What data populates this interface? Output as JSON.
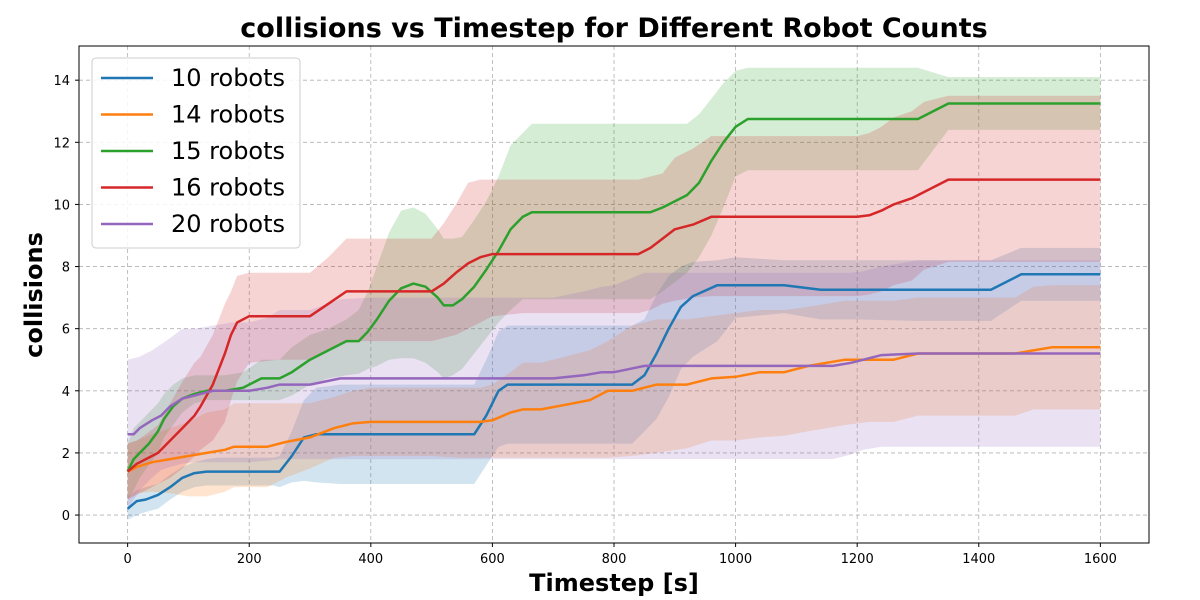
{
  "chart_data": {
    "type": "line",
    "title": "collisions vs Timestep for Different Robot Counts",
    "xlabel": "Timestep [s]",
    "ylabel": "collisions",
    "xlim": [
      -80,
      1680
    ],
    "ylim": [
      -0.9,
      15.1
    ],
    "xticks": [
      0,
      200,
      400,
      600,
      800,
      1000,
      1200,
      1400,
      1600
    ],
    "yticks": [
      0,
      2,
      4,
      6,
      8,
      10,
      12,
      14
    ],
    "grid": true,
    "legend_position": "top-left",
    "series": [
      {
        "name": "10 robots",
        "color": "#1f77b4",
        "x": [
          0,
          15,
          30,
          50,
          70,
          90,
          110,
          130,
          150,
          180,
          210,
          240,
          250,
          270,
          290,
          310,
          350,
          400,
          450,
          500,
          550,
          570,
          590,
          610,
          625,
          650,
          700,
          750,
          800,
          830,
          850,
          870,
          890,
          910,
          930,
          970,
          1000,
          1080,
          1140,
          1200,
          1300,
          1420,
          1470,
          1600
        ],
        "y": [
          0.2,
          0.45,
          0.5,
          0.65,
          0.9,
          1.2,
          1.35,
          1.4,
          1.4,
          1.4,
          1.4,
          1.4,
          1.4,
          1.9,
          2.5,
          2.6,
          2.6,
          2.6,
          2.6,
          2.6,
          2.6,
          2.6,
          3.2,
          4.0,
          4.2,
          4.2,
          4.2,
          4.2,
          4.2,
          4.2,
          4.5,
          5.2,
          6.0,
          6.7,
          7.05,
          7.4,
          7.4,
          7.4,
          7.25,
          7.25,
          7.25,
          7.25,
          7.75,
          7.75
        ],
        "lower": [
          -0.15,
          0.0,
          0.1,
          0.2,
          0.5,
          0.75,
          0.9,
          0.95,
          0.95,
          0.95,
          0.95,
          0.95,
          0.9,
          1.05,
          1.1,
          1.05,
          1.0,
          1.0,
          1.0,
          1.0,
          1.0,
          1.0,
          1.6,
          2.2,
          2.3,
          2.3,
          2.3,
          2.3,
          2.3,
          2.3,
          2.7,
          3.1,
          3.8,
          4.7,
          5.1,
          5.6,
          6.35,
          6.5,
          6.3,
          6.3,
          6.25,
          6.25,
          6.9,
          6.9
        ],
        "upper": [
          0.6,
          0.8,
          0.9,
          1.0,
          1.3,
          1.55,
          1.7,
          1.8,
          1.85,
          1.85,
          1.85,
          1.85,
          1.9,
          2.7,
          3.7,
          4.1,
          4.2,
          4.2,
          4.2,
          4.2,
          4.2,
          4.2,
          5.0,
          5.9,
          6.1,
          6.1,
          6.1,
          6.1,
          6.1,
          6.1,
          6.3,
          7.1,
          7.7,
          8.0,
          8.15,
          8.2,
          8.3,
          8.2,
          8.2,
          8.2,
          8.2,
          8.2,
          8.6,
          8.6
        ]
      },
      {
        "name": "14 robots",
        "color": "#ff7f0e",
        "x": [
          0,
          15,
          40,
          70,
          100,
          130,
          160,
          175,
          200,
          230,
          260,
          300,
          340,
          370,
          400,
          450,
          500,
          550,
          580,
          600,
          630,
          650,
          680,
          720,
          760,
          790,
          830,
          870,
          920,
          960,
          1000,
          1040,
          1080,
          1120,
          1180,
          1220,
          1260,
          1300,
          1340,
          1380,
          1420,
          1460,
          1490,
          1520,
          1600
        ],
        "y": [
          1.4,
          1.55,
          1.7,
          1.8,
          1.9,
          2.0,
          2.1,
          2.2,
          2.2,
          2.2,
          2.35,
          2.5,
          2.8,
          2.95,
          3.0,
          3.0,
          3.0,
          3.0,
          3.0,
          3.05,
          3.3,
          3.4,
          3.4,
          3.55,
          3.7,
          4.0,
          4.0,
          4.2,
          4.2,
          4.4,
          4.45,
          4.6,
          4.6,
          4.8,
          5.0,
          5.0,
          5.0,
          5.2,
          5.2,
          5.2,
          5.2,
          5.2,
          5.3,
          5.4,
          5.4
        ],
        "lower": [
          0.5,
          0.7,
          0.75,
          0.7,
          0.6,
          0.6,
          0.75,
          0.9,
          0.9,
          0.9,
          1.2,
          1.5,
          1.85,
          1.9,
          1.9,
          1.9,
          1.9,
          1.85,
          1.85,
          1.85,
          1.85,
          1.85,
          1.85,
          1.85,
          1.85,
          1.85,
          1.9,
          2.0,
          2.15,
          2.4,
          2.4,
          2.5,
          2.55,
          2.7,
          2.9,
          3.0,
          3.0,
          3.2,
          3.2,
          3.2,
          3.2,
          3.2,
          3.4,
          3.4,
          3.4
        ],
        "upper": [
          2.3,
          2.4,
          2.6,
          2.8,
          3.0,
          3.3,
          3.4,
          3.6,
          3.6,
          3.6,
          3.6,
          3.6,
          3.8,
          4.0,
          4.1,
          4.1,
          4.1,
          4.1,
          4.1,
          4.2,
          4.6,
          4.9,
          4.9,
          5.1,
          5.3,
          5.6,
          6.1,
          6.3,
          6.3,
          6.4,
          6.5,
          6.6,
          6.6,
          6.7,
          6.9,
          6.9,
          6.9,
          7.0,
          7.0,
          7.0,
          7.0,
          7.0,
          7.35,
          7.4,
          7.4
        ]
      },
      {
        "name": "15 robots",
        "color": "#2ca02c",
        "x": [
          0,
          10,
          20,
          35,
          50,
          60,
          75,
          90,
          110,
          130,
          160,
          190,
          220,
          250,
          270,
          300,
          330,
          360,
          380,
          395,
          410,
          430,
          450,
          470,
          490,
          510,
          520,
          535,
          550,
          570,
          590,
          610,
          630,
          650,
          665,
          700,
          750,
          800,
          860,
          880,
          920,
          940,
          960,
          980,
          1000,
          1020,
          1100,
          1200,
          1300,
          1350,
          1400,
          1600
        ],
        "y": [
          1.4,
          1.8,
          2.0,
          2.3,
          2.7,
          3.1,
          3.5,
          3.75,
          3.9,
          4.0,
          4.0,
          4.1,
          4.4,
          4.4,
          4.6,
          5.0,
          5.3,
          5.6,
          5.6,
          5.9,
          6.3,
          6.9,
          7.3,
          7.45,
          7.35,
          7.0,
          6.75,
          6.75,
          6.95,
          7.35,
          7.9,
          8.5,
          9.2,
          9.6,
          9.75,
          9.75,
          9.75,
          9.75,
          9.75,
          9.9,
          10.3,
          10.7,
          11.4,
          12.0,
          12.5,
          12.75,
          12.75,
          12.75,
          12.75,
          13.25,
          13.25,
          13.25
        ],
        "lower": [
          0.5,
          0.8,
          1.2,
          1.6,
          2.0,
          2.5,
          2.9,
          3.3,
          3.6,
          3.7,
          3.7,
          3.7,
          3.7,
          3.7,
          3.85,
          4.2,
          4.4,
          4.5,
          4.55,
          4.7,
          4.8,
          5.0,
          5.05,
          5.05,
          4.9,
          4.6,
          4.4,
          4.5,
          4.7,
          5.2,
          5.7,
          6.2,
          6.6,
          6.95,
          6.95,
          6.95,
          6.95,
          6.95,
          6.95,
          7.2,
          7.8,
          8.3,
          9.0,
          9.9,
          10.9,
          11.1,
          11.1,
          11.1,
          11.1,
          12.4,
          12.4,
          12.4
        ],
        "upper": [
          2.3,
          2.8,
          3.0,
          3.3,
          3.6,
          3.9,
          4.2,
          4.4,
          4.5,
          4.5,
          4.5,
          4.6,
          5.0,
          5.0,
          5.4,
          5.8,
          6.0,
          6.3,
          6.6,
          7.2,
          8.0,
          9.1,
          9.8,
          9.9,
          9.7,
          9.2,
          8.9,
          8.9,
          8.95,
          9.5,
          10.1,
          10.9,
          11.9,
          12.3,
          12.6,
          12.6,
          12.6,
          12.6,
          12.6,
          12.6,
          12.6,
          12.9,
          13.4,
          13.9,
          14.3,
          14.4,
          14.4,
          14.4,
          14.4,
          14.1,
          14.1,
          14.1
        ]
      },
      {
        "name": "16 robots",
        "color": "#d62728",
        "x": [
          0,
          15,
          30,
          50,
          70,
          90,
          110,
          120,
          140,
          160,
          170,
          180,
          200,
          250,
          300,
          330,
          360,
          400,
          450,
          500,
          520,
          540,
          560,
          580,
          600,
          650,
          700,
          780,
          840,
          860,
          880,
          900,
          930,
          960,
          1000,
          1100,
          1200,
          1220,
          1240,
          1260,
          1290,
          1310,
          1350,
          1400,
          1600
        ],
        "y": [
          1.4,
          1.65,
          1.8,
          2.0,
          2.4,
          2.8,
          3.2,
          3.5,
          4.2,
          5.2,
          5.8,
          6.2,
          6.4,
          6.4,
          6.4,
          6.8,
          7.2,
          7.2,
          7.2,
          7.2,
          7.45,
          7.8,
          8.1,
          8.3,
          8.4,
          8.4,
          8.4,
          8.4,
          8.4,
          8.6,
          8.9,
          9.2,
          9.35,
          9.6,
          9.6,
          9.6,
          9.6,
          9.65,
          9.8,
          10.0,
          10.2,
          10.4,
          10.8,
          10.8,
          10.8
        ],
        "lower": [
          0.5,
          0.65,
          0.8,
          1.0,
          1.2,
          1.5,
          1.9,
          2.1,
          2.4,
          3.0,
          3.7,
          4.3,
          4.9,
          5.0,
          5.0,
          5.3,
          5.6,
          5.6,
          5.6,
          5.6,
          5.7,
          5.8,
          6.0,
          6.2,
          6.4,
          6.5,
          6.5,
          6.5,
          6.5,
          6.6,
          6.8,
          6.9,
          7.0,
          7.05,
          7.05,
          7.05,
          7.05,
          7.1,
          7.2,
          7.4,
          7.55,
          7.9,
          8.15,
          8.15,
          8.15
        ],
        "upper": [
          2.3,
          2.4,
          2.6,
          2.9,
          3.6,
          4.3,
          4.9,
          5.1,
          5.8,
          6.8,
          7.2,
          7.7,
          7.8,
          7.8,
          7.8,
          8.3,
          8.9,
          8.9,
          8.9,
          8.9,
          9.4,
          10.0,
          10.7,
          10.8,
          10.8,
          10.8,
          10.8,
          10.8,
          10.8,
          10.9,
          11.0,
          11.5,
          11.8,
          12.2,
          12.2,
          12.2,
          12.2,
          12.3,
          12.5,
          12.8,
          13.0,
          13.3,
          13.5,
          13.5,
          13.5
        ]
      },
      {
        "name": "20 robots",
        "color": "#9467bd",
        "x": [
          0,
          10,
          20,
          40,
          55,
          70,
          90,
          110,
          140,
          170,
          200,
          230,
          250,
          300,
          350,
          400,
          500,
          600,
          700,
          750,
          780,
          800,
          850,
          900,
          1000,
          1100,
          1160,
          1190,
          1210,
          1240,
          1300,
          1400,
          1600
        ],
        "y": [
          2.6,
          2.6,
          2.8,
          3.05,
          3.2,
          3.5,
          3.75,
          3.85,
          4.0,
          4.0,
          4.0,
          4.1,
          4.2,
          4.2,
          4.4,
          4.4,
          4.4,
          4.4,
          4.4,
          4.5,
          4.6,
          4.6,
          4.8,
          4.8,
          4.8,
          4.8,
          4.8,
          4.9,
          5.0,
          5.15,
          5.2,
          5.2,
          5.2
        ],
        "lower": [
          0.2,
          0.5,
          0.8,
          1.2,
          1.45,
          1.55,
          1.65,
          1.7,
          1.7,
          1.7,
          1.7,
          1.75,
          1.8,
          1.8,
          1.8,
          1.8,
          1.8,
          1.8,
          1.8,
          1.8,
          1.8,
          1.8,
          1.8,
          1.8,
          1.8,
          1.8,
          1.8,
          1.95,
          2.1,
          2.2,
          2.2,
          2.2,
          2.2
        ],
        "upper": [
          5.0,
          5.05,
          5.1,
          5.3,
          5.5,
          5.7,
          6.0,
          6.0,
          6.1,
          6.2,
          6.2,
          6.35,
          6.6,
          6.6,
          6.95,
          7.0,
          7.0,
          7.0,
          7.0,
          7.2,
          7.35,
          7.4,
          7.8,
          7.8,
          7.8,
          7.8,
          7.8,
          7.8,
          7.85,
          8.0,
          8.2,
          8.2,
          8.2
        ]
      }
    ]
  }
}
